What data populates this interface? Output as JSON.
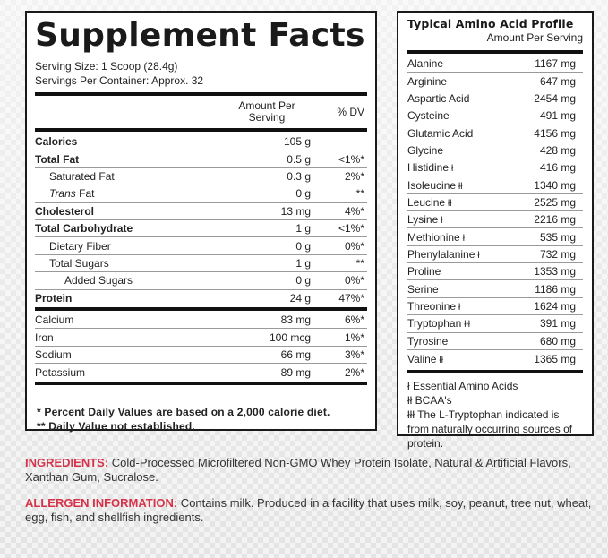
{
  "supplement_facts": {
    "title": "Supplement Facts",
    "serving_size": "Serving Size: 1 Scoop (28.4g)",
    "servings_per_container": "Servings Per Container: Approx. 32",
    "columns": {
      "amount": "Amount Per Serving",
      "dv": "% DV"
    },
    "nutrients": [
      {
        "name": "Calories",
        "amount": "105 g",
        "dv": "",
        "style": "bold"
      },
      {
        "name": "Total Fat",
        "amount": "0.5 g",
        "dv": "<1%*",
        "style": "bold"
      },
      {
        "name": "Saturated Fat",
        "amount": "0.3 g",
        "dv": "2%*",
        "style": "ind1"
      },
      {
        "name_italic": "Trans",
        "name": " Fat",
        "amount": "0 g",
        "dv": "**",
        "style": "ind1"
      },
      {
        "name": "Cholesterol",
        "amount": "13 mg",
        "dv": "4%*",
        "style": "bold"
      },
      {
        "name": "Total Carbohydrate",
        "amount": "1 g",
        "dv": "<1%*",
        "style": "bold"
      },
      {
        "name": "Dietary Fiber",
        "amount": "0 g",
        "dv": "0%*",
        "style": "ind1"
      },
      {
        "name": "Total Sugars",
        "amount": "1 g",
        "dv": "**",
        "style": "ind1"
      },
      {
        "name": "Added Sugars",
        "amount": "0 g",
        "dv": "0%*",
        "style": "ind2"
      },
      {
        "name": "Protein",
        "amount": "24 g",
        "dv": "47%*",
        "style": "bold"
      }
    ],
    "minerals": [
      {
        "name": "Calcium",
        "amount": "83 mg",
        "dv": "6%*"
      },
      {
        "name": "Iron",
        "amount": "100 mcg",
        "dv": "1%*"
      },
      {
        "name": "Sodium",
        "amount": "66 mg",
        "dv": "3%*"
      },
      {
        "name": "Potassium",
        "amount": "89 mg",
        "dv": "2%*"
      }
    ],
    "footnotes": [
      "* Percent Daily Values are based on a 2,000 calorie diet.",
      "** Daily Value not established."
    ]
  },
  "amino_profile": {
    "title": "Typical Amino Acid Profile",
    "subtitle": "Amount Per Serving",
    "acids": [
      {
        "name": "Alanine",
        "mark": "",
        "amount": "1167 mg"
      },
      {
        "name": "Arginine",
        "mark": "",
        "amount": "647 mg"
      },
      {
        "name": "Aspartic Acid",
        "mark": "",
        "amount": "2454 mg"
      },
      {
        "name": "Cysteine",
        "mark": "",
        "amount": "491 mg"
      },
      {
        "name": "Glutamic Acid",
        "mark": "",
        "amount": "4156 mg"
      },
      {
        "name": "Glycine",
        "mark": "",
        "amount": "428 mg"
      },
      {
        "name": "Histidine",
        "mark": "ł",
        "amount": "416 mg"
      },
      {
        "name": "Isoleucine",
        "mark": "łł",
        "amount": "1340 mg"
      },
      {
        "name": "Leucine",
        "mark": "łł",
        "amount": "2525 mg"
      },
      {
        "name": "Lysine",
        "mark": "ł",
        "amount": "2216 mg"
      },
      {
        "name": "Methionine",
        "mark": "ł",
        "amount": "535 mg"
      },
      {
        "name": "Phenylalanine",
        "mark": "ł",
        "amount": "732 mg"
      },
      {
        "name": "Proline",
        "mark": "",
        "amount": "1353 mg"
      },
      {
        "name": "Serine",
        "mark": "",
        "amount": "1186 mg"
      },
      {
        "name": "Threonine",
        "mark": "ł",
        "amount": "1624 mg"
      },
      {
        "name": "Tryptophan",
        "mark": "łłł",
        "amount": "391 mg"
      },
      {
        "name": "Tyrosine",
        "mark": "",
        "amount": "680 mg"
      },
      {
        "name": "Valine",
        "mark": "łł",
        "amount": "1365 mg"
      }
    ],
    "legend": [
      "ł Essential Amino Acids",
      "łł BCAA's",
      "łłł The L-Tryptophan indicated is from naturally occurring sources of protein."
    ]
  },
  "ingredients": {
    "label": "INGREDIENTS:",
    "text": " Cold-Processed Microfiltered Non-GMO Whey Protein Isolate, Natural & Artificial Flavors, Xanthan Gum, Sucralose."
  },
  "allergen": {
    "label": "ALLERGEN INFORMATION:",
    "text": " Contains milk. Produced in a facility that uses milk, soy, peanut, tree nut, wheat, egg, fish, and shellfish ingredients."
  },
  "colors": {
    "accent_red": "#d6334a",
    "text": "#1a1a1a",
    "border": "#1a1a1a"
  }
}
